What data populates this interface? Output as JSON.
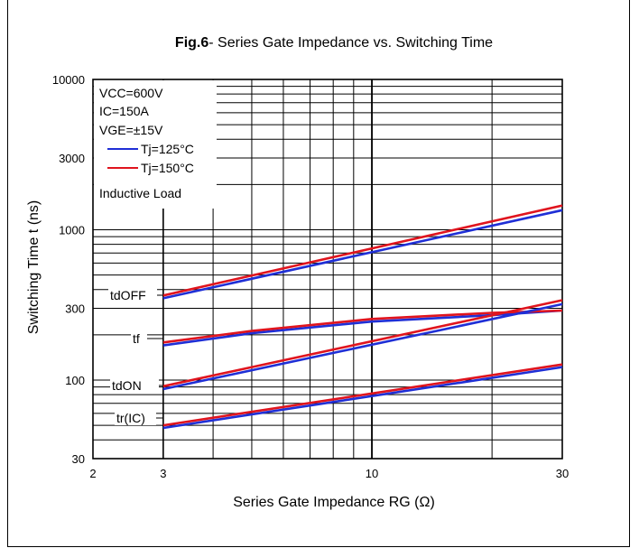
{
  "chart_data": {
    "type": "line",
    "title_bold": "Fig.6",
    "title_rest": "- Series Gate Impedance vs. Switching Time",
    "xlabel": "Series Gate Impedance RG (Ω)",
    "ylabel": "Switching Time t (ns)",
    "x_scale": "log",
    "y_scale": "log",
    "xlim": [
      2,
      30
    ],
    "ylim": [
      30,
      10000
    ],
    "x_ticks": [
      "2",
      "3",
      "10",
      "30"
    ],
    "y_ticks": [
      "30",
      "100",
      "300",
      "1000",
      "3000",
      "10000"
    ],
    "grid": true,
    "conditions": [
      "VCC=600V",
      "IC=150A",
      "VGE=±15V",
      "Inductive Load"
    ],
    "legend_position": "top-left",
    "legend": [
      {
        "label": "Tj=125°C",
        "color": "#1f2fd6"
      },
      {
        "label": "Tj=150°C",
        "color": "#e0141e"
      }
    ],
    "curve_labels": [
      "tdOFF",
      "tf",
      "tdON",
      "tr(IC)"
    ],
    "curves": [
      {
        "label": "tdOFF",
        "series": [
          {
            "name": "Tj=125°C",
            "x": [
              3,
              30
            ],
            "y": [
              350,
              1350
            ]
          },
          {
            "name": "Tj=150°C",
            "x": [
              3,
              30
            ],
            "y": [
              365,
              1450
            ]
          }
        ]
      },
      {
        "label": "tf",
        "series": [
          {
            "name": "Tj=125°C",
            "x": [
              3,
              5,
              10,
              20,
              30
            ],
            "y": [
              170,
              205,
              245,
              270,
              290
            ]
          },
          {
            "name": "Tj=150°C",
            "x": [
              3,
              5,
              10,
              20,
              30
            ],
            "y": [
              178,
              212,
              255,
              280,
              290
            ]
          }
        ]
      },
      {
        "label": "tdON",
        "series": [
          {
            "name": "Tj=125°C",
            "x": [
              3,
              30
            ],
            "y": [
              87,
              320
            ]
          },
          {
            "name": "Tj=150°C",
            "x": [
              3,
              30
            ],
            "y": [
              91,
              340
            ]
          }
        ]
      },
      {
        "label": "tr(IC)",
        "series": [
          {
            "name": "Tj=125°C",
            "x": [
              3,
              30
            ],
            "y": [
              48,
              122
            ]
          },
          {
            "name": "Tj=150°C",
            "x": [
              3,
              30
            ],
            "y": [
              50,
              127
            ]
          }
        ]
      }
    ]
  }
}
